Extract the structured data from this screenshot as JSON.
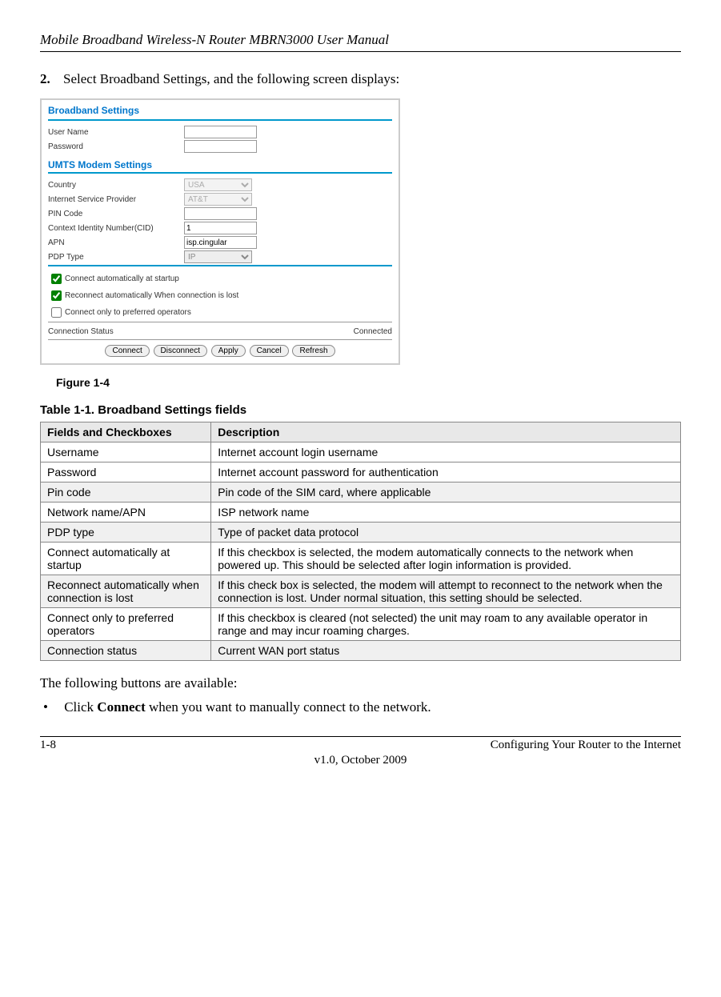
{
  "header": "Mobile Broadband Wireless-N Router MBRN3000 User Manual",
  "step": {
    "num": "2.",
    "text": "Select Broadband Settings, and the following screen displays:"
  },
  "screenshot": {
    "title": "Broadband Settings",
    "userRow": {
      "label": "User Name",
      "value": ""
    },
    "passRow": {
      "label": "Password",
      "value": ""
    },
    "subTitle": "UMTS Modem Settings",
    "countryRow": {
      "label": "Country",
      "value": "USA"
    },
    "ispRow": {
      "label": "Internet Service Provider",
      "value": "AT&T"
    },
    "pinRow": {
      "label": "PIN Code",
      "value": ""
    },
    "cidRow": {
      "label": "Context Identity Number(CID)",
      "value": "1"
    },
    "apnRow": {
      "label": "APN",
      "value": "isp.cingular"
    },
    "pdpRow": {
      "label": "PDP Type",
      "value": "IP"
    },
    "chk1": "Connect automatically at startup",
    "chk2": "Reconnect automatically When connection is lost",
    "chk3": "Connect only to preferred operators",
    "statusLabel": "Connection Status",
    "statusValue": "Connected",
    "btns": {
      "connect": "Connect",
      "disconnect": "Disconnect",
      "apply": "Apply",
      "cancel": "Cancel",
      "refresh": "Refresh"
    }
  },
  "figCaption": "Figure 1-4",
  "tblCaption": "Table 1-1.  Broadband Settings fields",
  "tbl": {
    "h1": "Fields and Checkboxes",
    "h2": "Description",
    "rows": [
      {
        "f": "Username",
        "d": "Internet account login username",
        "shade": false
      },
      {
        "f": "Password",
        "d": "Internet account password for authentication",
        "shade": false
      },
      {
        "f": "Pin code",
        "d": "Pin code of the SIM card, where applicable",
        "shade": true
      },
      {
        "f": "Network name/APN",
        "d": "ISP network name",
        "shade": false
      },
      {
        "f": "PDP type",
        "d": "Type of packet data protocol",
        "shade": true
      },
      {
        "f": "Connect automatically at startup",
        "d": "If this checkbox is selected, the modem automatically connects to the network when powered up. This should be selected after login information is provided.",
        "shade": false
      },
      {
        "f": "Reconnect automatically when connection is lost",
        "d": "If this check box is selected, the modem will attempt to reconnect to the network when the connection is lost. Under normal situation, this setting should be selected.",
        "shade": true
      },
      {
        "f": "Connect only to preferred operators",
        "d": "If this checkbox is cleared (not selected) the unit may roam to any available operator in range and may incur roaming charges.",
        "shade": false
      },
      {
        "f": "Connection status",
        "d": "Current WAN port status",
        "shade": true
      }
    ]
  },
  "afterTable": "The following buttons are available:",
  "bullet": {
    "pre": "Click ",
    "bold": "Connect",
    "post": " when you want to manually connect to the network."
  },
  "footer": {
    "left": "1-8",
    "right": "Configuring Your Router to the Internet",
    "center": "v1.0, October 2009"
  }
}
